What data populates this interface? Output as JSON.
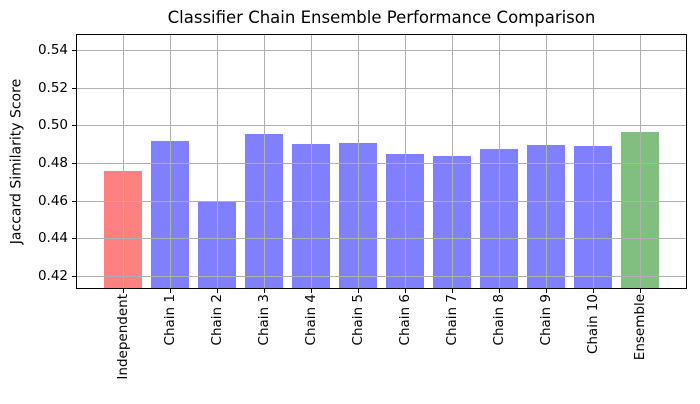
{
  "chart_data": {
    "type": "bar",
    "title": "Classifier Chain Ensemble Performance Comparison",
    "ylabel": "Jaccard Similarity Score",
    "xlabel": "",
    "categories": [
      "Independent",
      "Chain 1",
      "Chain 2",
      "Chain 3",
      "Chain 4",
      "Chain 5",
      "Chain 6",
      "Chain 7",
      "Chain 8",
      "Chain 9",
      "Chain 10",
      "Ensemble"
    ],
    "values": [
      0.4756,
      0.4916,
      0.4597,
      0.4955,
      0.4902,
      0.4904,
      0.4846,
      0.4835,
      0.4876,
      0.4897,
      0.4891,
      0.4966
    ],
    "bar_colors": [
      "#ff8080",
      "#8080ff",
      "#8080ff",
      "#8080ff",
      "#8080ff",
      "#8080ff",
      "#8080ff",
      "#8080ff",
      "#8080ff",
      "#8080ff",
      "#8080ff",
      "#80bf80"
    ],
    "color_legend": {
      "independent_baseline": "#ff8080",
      "chains": "#8080ff",
      "ensemble": "#80bf80"
    },
    "ylim": [
      0.4135,
      0.548
    ],
    "yticks": [
      0.42,
      0.44,
      0.46,
      0.48,
      0.5,
      0.52,
      0.54
    ],
    "ytick_labels": [
      "0.42",
      "0.44",
      "0.46",
      "0.48",
      "0.50",
      "0.52",
      "0.54"
    ],
    "grid": true,
    "grid_color": "#b0b0b0",
    "axis_color": "#000000",
    "background": "#ffffff",
    "legend_position": "none"
  }
}
